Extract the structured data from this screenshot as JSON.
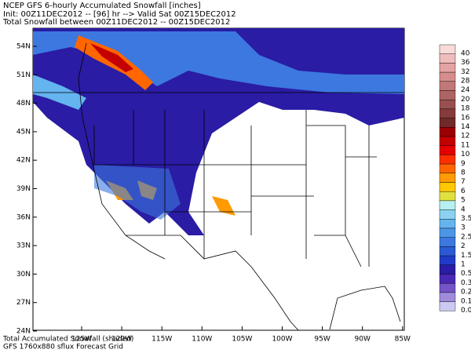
{
  "header": {
    "line1": "NCEP GFS 6-hourly Accumulated Snowfall [inches]",
    "line2": "Init: 00Z11DEC2012 -- [96] hr --> Valid Sat 00Z15DEC2012",
    "line3": "Total Snowfall between 00Z11DEC2012 -- 00Z15DEC2012"
  },
  "latitude_labels": [
    "54N",
    "51N",
    "48N",
    "45N",
    "42N",
    "39N",
    "36N",
    "33N",
    "30N",
    "27N",
    "24N"
  ],
  "longitude_labels": [
    "125W",
    "120W",
    "115W",
    "110W",
    "105W",
    "100W",
    "95W",
    "90W",
    "85W"
  ],
  "legend": [
    {
      "label": "40",
      "color": "#f8dada"
    },
    {
      "label": "36",
      "color": "#f0bcbc"
    },
    {
      "label": "32",
      "color": "#e4a4a4"
    },
    {
      "label": "28",
      "color": "#d48e8e"
    },
    {
      "label": "24",
      "color": "#c07878"
    },
    {
      "label": "20",
      "color": "#ac6464"
    },
    {
      "label": "18",
      "color": "#985050"
    },
    {
      "label": "16",
      "color": "#843c3c"
    },
    {
      "label": "14",
      "color": "#702a2a"
    },
    {
      "label": "12",
      "color": "#9c0000"
    },
    {
      "label": "11",
      "color": "#c40000"
    },
    {
      "label": "10",
      "color": "#e40000"
    },
    {
      "label": "9",
      "color": "#ff3000"
    },
    {
      "label": "8",
      "color": "#ff6600"
    },
    {
      "label": "7",
      "color": "#ff9a00"
    },
    {
      "label": "6",
      "color": "#ffc800"
    },
    {
      "label": "5",
      "color": "#e0e040"
    },
    {
      "label": "4",
      "color": "#b4f0f0"
    },
    {
      "label": "3.5",
      "color": "#8cd2f0"
    },
    {
      "label": "3",
      "color": "#64b4f0"
    },
    {
      "label": "2.5",
      "color": "#4c96e8"
    },
    {
      "label": "2",
      "color": "#3c78e0"
    },
    {
      "label": "1.5",
      "color": "#2c5ad4"
    },
    {
      "label": "1",
      "color": "#1e3cc8"
    },
    {
      "label": "0.5",
      "color": "#2a1ca4"
    },
    {
      "label": "0.3",
      "color": "#4a28b4"
    },
    {
      "label": "0.2",
      "color": "#7454c8"
    },
    {
      "label": "0.1",
      "color": "#a08cdc"
    },
    {
      "label": "0.05",
      "color": "#cccaf2"
    }
  ],
  "footer": {
    "line1": "Total Accumulated Snowfall (shaded)",
    "line2": "GFS 1760x880 sflux Forecast Grid"
  }
}
